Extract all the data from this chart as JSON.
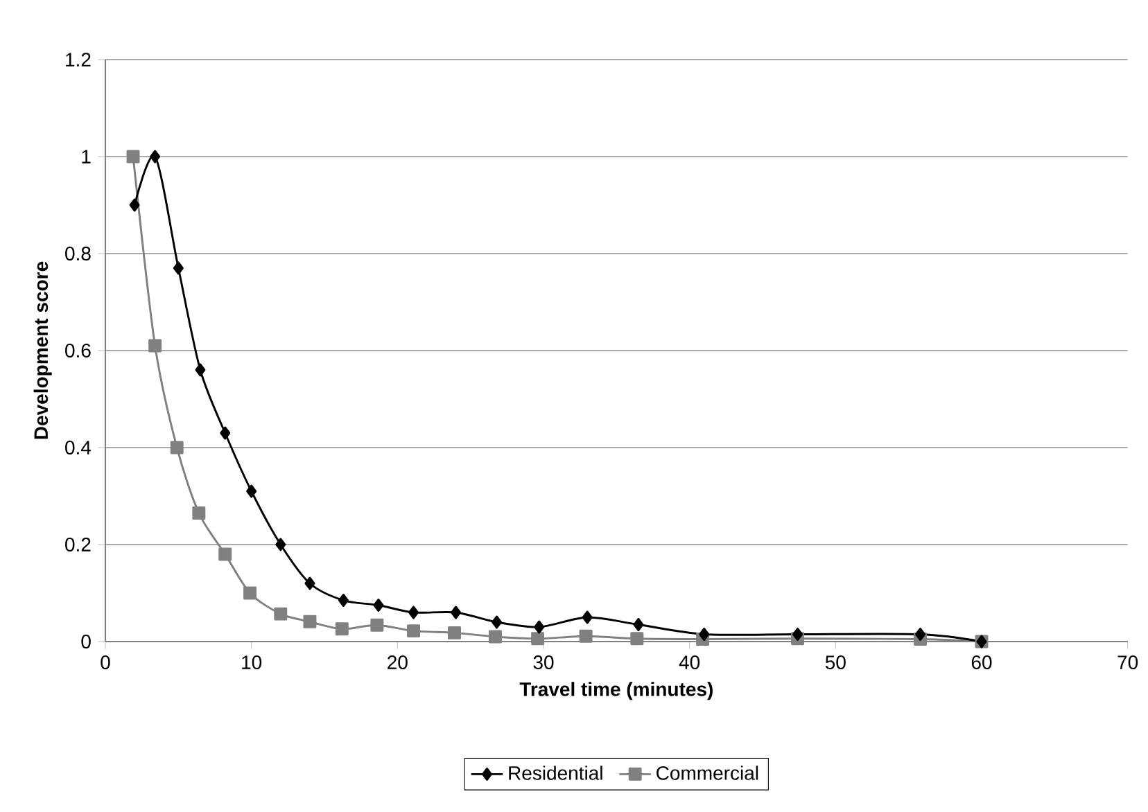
{
  "chart_data": {
    "type": "line",
    "xlabel": "Travel time (minutes)",
    "ylabel": "Development score",
    "xlim": [
      0,
      70
    ],
    "xticks": [
      0,
      10,
      20,
      30,
      40,
      50,
      60,
      70
    ],
    "ylim": [
      0,
      1.2
    ],
    "yticks": [
      0,
      0.2,
      0.4,
      0.6,
      0.8,
      1,
      1.2
    ],
    "grid": "y",
    "legend": "bottom",
    "line_style": "solid",
    "series": [
      {
        "name": "Residential",
        "color": "#000000",
        "marker": "diamond",
        "x": [
          2,
          3.4,
          5,
          6.5,
          8.2,
          10,
          12,
          14,
          16.3,
          18.7,
          21.1,
          24,
          26.8,
          29.7,
          33,
          36.5,
          41,
          47.4,
          55.8,
          60
        ],
        "values": [
          0.9,
          1.0,
          0.77,
          0.56,
          0.43,
          0.31,
          0.2,
          0.12,
          0.085,
          0.075,
          0.06,
          0.06,
          0.04,
          0.03,
          0.05,
          0.035,
          0.015,
          0.015,
          0.015,
          0.0
        ]
      },
      {
        "name": "Commercial",
        "color": "#808080",
        "marker": "square",
        "x": [
          1.9,
          3.4,
          4.9,
          6.4,
          8.2,
          9.9,
          12,
          14,
          16.2,
          18.6,
          21.1,
          23.9,
          26.7,
          29.6,
          32.9,
          36.4,
          40.9,
          47.4,
          55.8,
          60
        ],
        "values": [
          1.0,
          0.61,
          0.4,
          0.265,
          0.18,
          0.1,
          0.057,
          0.041,
          0.026,
          0.034,
          0.022,
          0.018,
          0.01,
          0.006,
          0.011,
          0.006,
          0.005,
          0.006,
          0.005,
          0.0
        ]
      }
    ]
  }
}
